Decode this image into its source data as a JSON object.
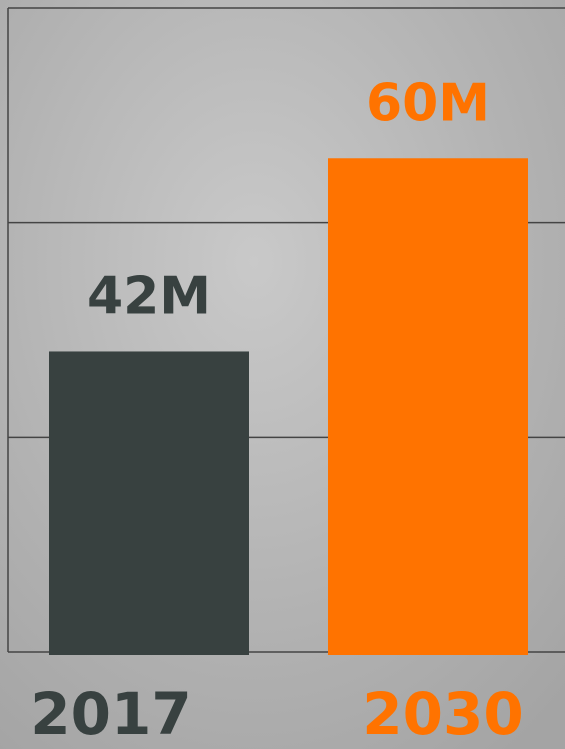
{
  "chart_data": {
    "type": "bar",
    "categories": [
      "2017",
      "2030"
    ],
    "values": [
      42,
      60
    ],
    "value_labels": [
      "42M",
      "60M"
    ],
    "colors": [
      "#384140",
      "#ff7300"
    ],
    "ylim": [
      14,
      74
    ],
    "yticks": [
      14,
      34,
      54,
      74
    ],
    "grid": true
  }
}
